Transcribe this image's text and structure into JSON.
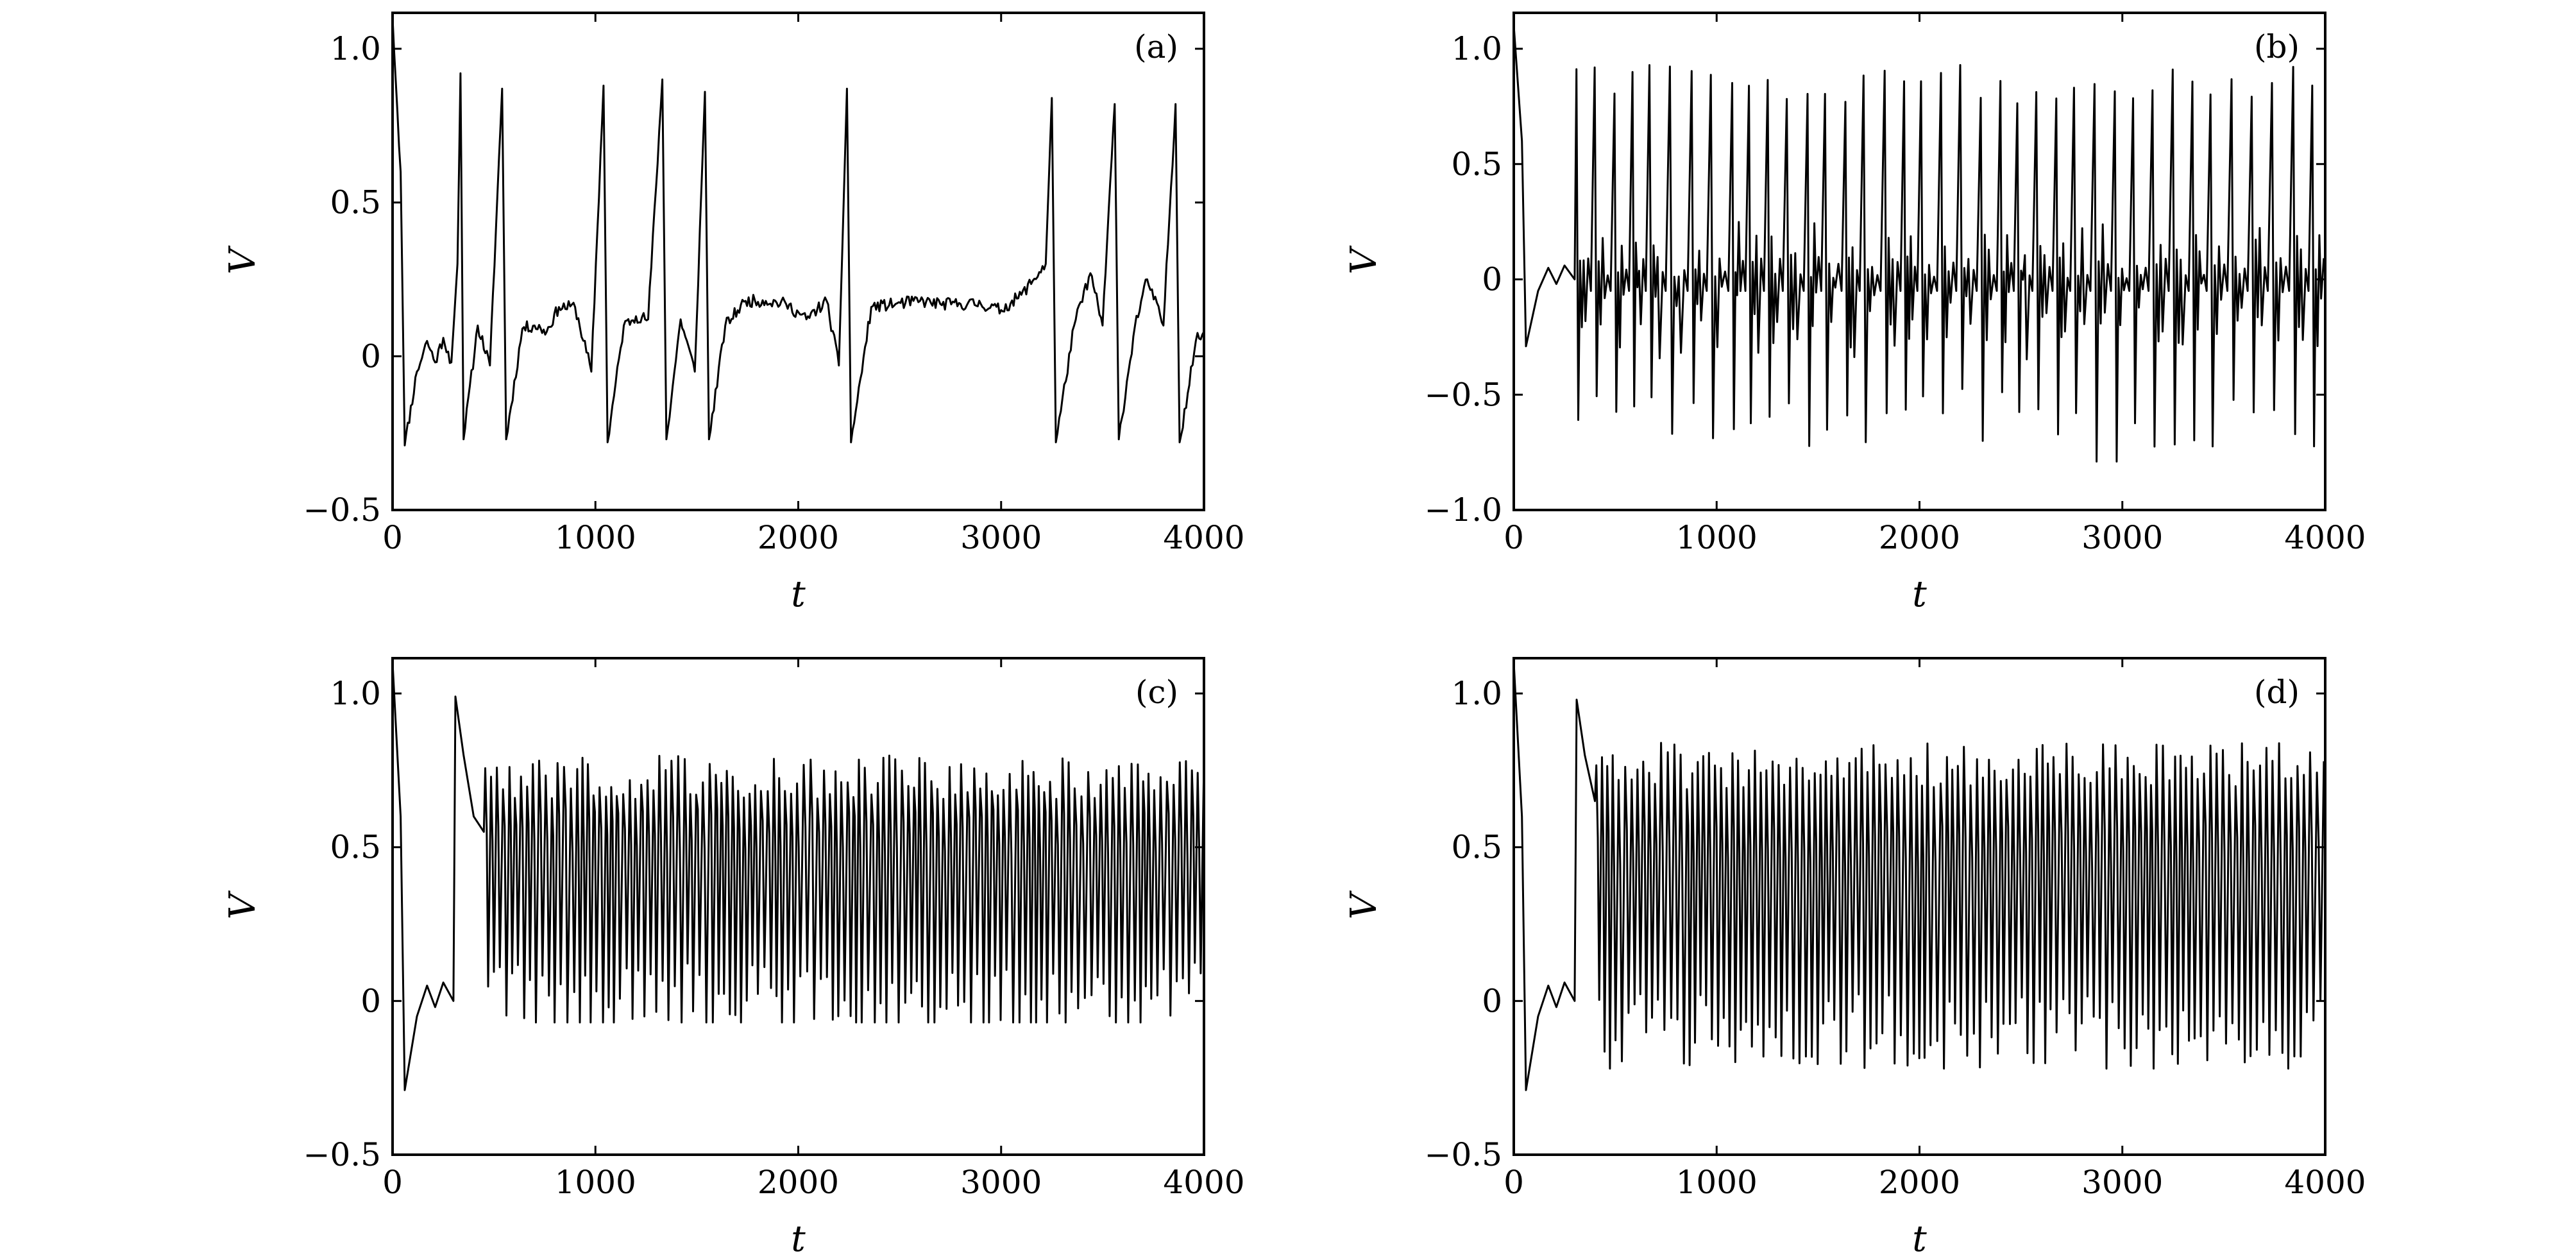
{
  "chart_data": [
    {
      "type": "line",
      "panel": "(a)",
      "xlabel": "t",
      "ylabel": "V",
      "xlim": [
        0,
        4000
      ],
      "ylim": [
        -0.5,
        1.1
      ],
      "xticks": [
        "0",
        "1000",
        "2000",
        "3000",
        "4000"
      ],
      "yticks": [
        "−0.5",
        "0",
        "0.5",
        "1.0"
      ],
      "grid": false,
      "line_color": "#000000",
      "series": [
        {
          "description_points": [
            [
              0,
              1.1
            ],
            [
              40,
              0.6
            ],
            [
              60,
              -0.29
            ],
            [
              120,
              -0.05
            ],
            [
              170,
              0.05
            ],
            [
              210,
              -0.02
            ],
            [
              250,
              0.06
            ],
            [
              290,
              -0.02
            ],
            [
              320,
              0.3
            ],
            [
              335,
              0.92
            ],
            [
              350,
              -0.27
            ],
            [
              420,
              0.1
            ],
            [
              480,
              -0.03
            ],
            [
              540,
              0.87
            ],
            [
              560,
              -0.27
            ],
            [
              640,
              0.09
            ],
            [
              700,
              0.1
            ],
            [
              760,
              0.08
            ],
            [
              820,
              0.16
            ],
            [
              900,
              0.16
            ],
            [
              980,
              -0.05
            ],
            [
              1040,
              0.88
            ],
            [
              1060,
              -0.28
            ],
            [
              1140,
              0.1
            ],
            [
              1200,
              0.13
            ],
            [
              1260,
              0.12
            ],
            [
              1330,
              0.9
            ],
            [
              1350,
              -0.27
            ],
            [
              1420,
              0.12
            ],
            [
              1490,
              -0.05
            ],
            [
              1540,
              0.86
            ],
            [
              1560,
              -0.27
            ],
            [
              1640,
              0.1
            ],
            [
              1740,
              0.18
            ],
            [
              1840,
              0.18
            ],
            [
              1940,
              0.17
            ],
            [
              2040,
              0.12
            ],
            [
              2140,
              0.18
            ],
            [
              2200,
              -0.03
            ],
            [
              2240,
              0.87
            ],
            [
              2260,
              -0.28
            ],
            [
              2360,
              0.16
            ],
            [
              2480,
              0.17
            ],
            [
              2600,
              0.18
            ],
            [
              2700,
              0.17
            ],
            [
              2800,
              0.17
            ],
            [
              2900,
              0.17
            ],
            [
              3000,
              0.15
            ],
            [
              3100,
              0.2
            ],
            [
              3220,
              0.3
            ],
            [
              3250,
              0.84
            ],
            [
              3270,
              -0.28
            ],
            [
              3360,
              0.1
            ],
            [
              3440,
              0.27
            ],
            [
              3500,
              0.1
            ],
            [
              3560,
              0.82
            ],
            [
              3580,
              -0.27
            ],
            [
              3660,
              0.1
            ],
            [
              3720,
              0.25
            ],
            [
              3800,
              0.1
            ],
            [
              3860,
              0.82
            ],
            [
              3880,
              -0.28
            ],
            [
              3960,
              0.05
            ],
            [
              4000,
              0.08
            ]
          ],
          "values_profile": "sparse spikes"
        }
      ]
    },
    {
      "type": "line",
      "panel": "(b)",
      "xlabel": "t",
      "ylabel": "V",
      "xlim": [
        0,
        4000
      ],
      "ylim": [
        -1.0,
        1.15
      ],
      "xticks": [
        "0",
        "1000",
        "2000",
        "3000",
        "4000"
      ],
      "yticks": [
        "−1.0",
        "−0.5",
        "0",
        "0.5",
        "1.0"
      ],
      "grid": false,
      "line_color": "#000000",
      "series": [
        {
          "initial_points": [
            [
              0,
              1.1
            ],
            [
              40,
              0.6
            ],
            [
              60,
              -0.29
            ],
            [
              120,
              -0.05
            ],
            [
              170,
              0.05
            ],
            [
              210,
              -0.02
            ],
            [
              250,
              0.06
            ],
            [
              300,
              0.0
            ]
          ],
          "oscillation": {
            "start": 300,
            "period": 95,
            "peak_high": 0.93,
            "trough_low": -0.6,
            "extreme_low": -0.79,
            "extreme_low_t": 2930
          },
          "values_profile": "bursting"
        }
      ]
    },
    {
      "type": "line",
      "panel": "(c)",
      "xlabel": "t",
      "ylabel": "V",
      "xlim": [
        0,
        4000
      ],
      "ylim": [
        -0.5,
        1.1
      ],
      "xticks": [
        "0",
        "1000",
        "2000",
        "3000",
        "4000"
      ],
      "yticks": [
        "−0.5",
        "0",
        "0.5",
        "1.0"
      ],
      "grid": false,
      "line_color": "#000000",
      "series": [
        {
          "initial_points": [
            [
              0,
              1.1
            ],
            [
              40,
              0.6
            ],
            [
              60,
              -0.29
            ],
            [
              120,
              -0.05
            ],
            [
              170,
              0.05
            ],
            [
              210,
              -0.02
            ],
            [
              250,
              0.06
            ],
            [
              300,
              0.0
            ],
            [
              310,
              0.99
            ],
            [
              350,
              0.8
            ],
            [
              400,
              0.6
            ],
            [
              450,
              0.55
            ]
          ],
          "oscillation": {
            "start": 450,
            "period": 30,
            "peak_high": 0.8,
            "trough_low": 0.0,
            "extreme_low": -0.07
          },
          "values_profile": "fast periodic"
        }
      ]
    },
    {
      "type": "line",
      "panel": "(d)",
      "xlabel": "t",
      "ylabel": "V",
      "xlim": [
        0,
        4000
      ],
      "ylim": [
        -0.5,
        1.1
      ],
      "xticks": [
        "0",
        "1000",
        "2000",
        "3000",
        "4000"
      ],
      "yticks": [
        "−0.5",
        "0",
        "0.5",
        "1.0"
      ],
      "grid": false,
      "line_color": "#000000",
      "series": [
        {
          "initial_points": [
            [
              0,
              1.1
            ],
            [
              40,
              0.6
            ],
            [
              60,
              -0.29
            ],
            [
              120,
              -0.05
            ],
            [
              170,
              0.05
            ],
            [
              210,
              -0.02
            ],
            [
              250,
              0.06
            ],
            [
              300,
              0.0
            ],
            [
              310,
              0.98
            ],
            [
              350,
              0.8
            ],
            [
              400,
              0.65
            ]
          ],
          "oscillation": {
            "start": 400,
            "period": 30,
            "peak_high": 0.84,
            "trough_low": -0.1,
            "extreme_low": -0.22,
            "extreme_low_t": 2100
          },
          "values_profile": "fast irregular"
        }
      ]
    }
  ]
}
